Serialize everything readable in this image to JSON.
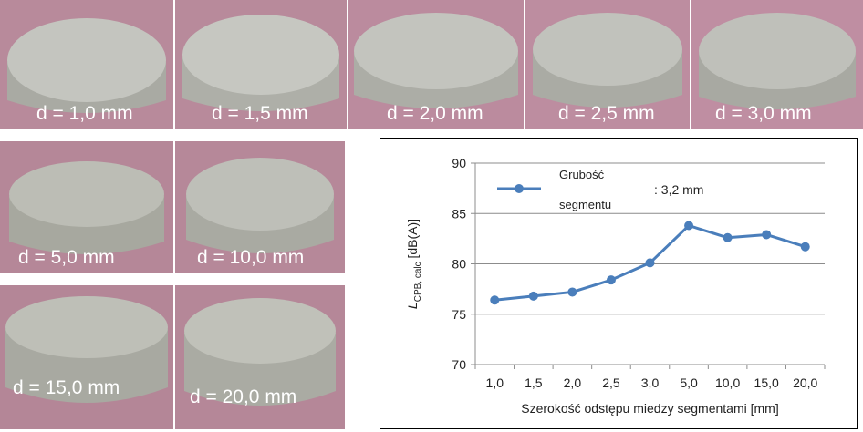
{
  "photos_top": [
    {
      "caption": "d = 1,0 mm"
    },
    {
      "caption": "d = 1,5 mm"
    },
    {
      "caption": "d = 2,0 mm"
    },
    {
      "caption": "d = 2,5 mm"
    },
    {
      "caption": "d = 3,0 mm"
    }
  ],
  "photos_bottom": [
    {
      "caption": "d = 5,0 mm"
    },
    {
      "caption": "d = 10,0 mm"
    },
    {
      "caption": "d = 15,0 mm"
    },
    {
      "caption": "d = 20,0 mm"
    }
  ],
  "chart_data": {
    "type": "line",
    "categories": [
      "1,0",
      "1,5",
      "2,0",
      "2,5",
      "3,0",
      "5,0",
      "10,0",
      "15,0",
      "20,0"
    ],
    "series": [
      {
        "name": "Grubość segmentu : 3,2 mm",
        "values": [
          76.4,
          76.8,
          77.2,
          78.4,
          80.1,
          83.8,
          82.6,
          82.9,
          81.7
        ]
      }
    ],
    "legend": {
      "label_line1": "Grubość",
      "label_line2": "segmentu",
      "value": ": 3,2 mm"
    },
    "xlabel": "Szerokość odstępu miedzy segmentami [mm]",
    "ylabel_main": "L",
    "ylabel_sub": "CPB, calc",
    "ylabel_unit": " [dB(A)]",
    "yticks": [
      70,
      75,
      80,
      85,
      90
    ],
    "ylim": [
      70,
      90
    ],
    "grid": true,
    "color": "#4a7ebb"
  }
}
